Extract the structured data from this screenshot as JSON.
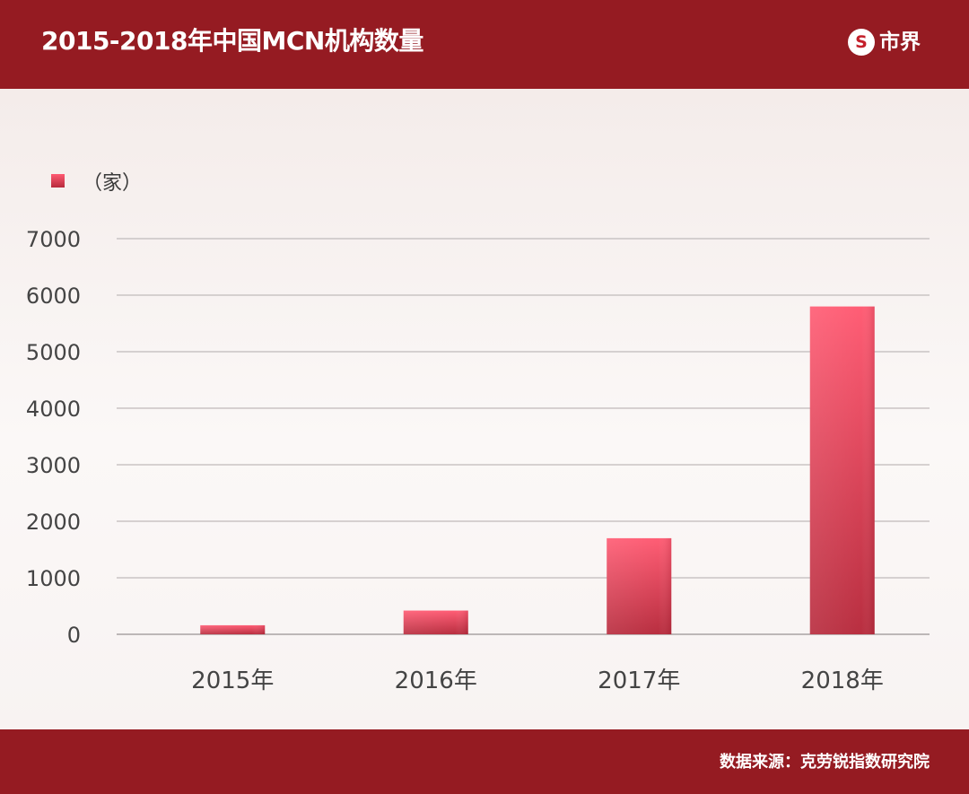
{
  "header": {
    "title": "2015-2018年中国MCN机构数量",
    "logo_text": "市界",
    "logo_mark": "S"
  },
  "footer": {
    "source": "数据来源：克劳锐指数研究院"
  },
  "colors": {
    "header_bg": "#951b22",
    "bar_top": "#ff5a72",
    "bar_bottom": "#b72a3c",
    "grid": "#c9c4c4",
    "background": "#f7f1f0"
  },
  "chart_data": {
    "type": "bar",
    "title": "2015-2018年中国MCN机构数量",
    "unit_label": "（家）",
    "categories": [
      "2015年",
      "2016年",
      "2017年",
      "2018年"
    ],
    "values": [
      160,
      420,
      1700,
      5800
    ],
    "ylim": [
      0,
      7000
    ],
    "yticks": [
      0,
      1000,
      2000,
      3000,
      4000,
      5000,
      6000,
      7000
    ],
    "grid": true,
    "legend_position": "top-left"
  }
}
